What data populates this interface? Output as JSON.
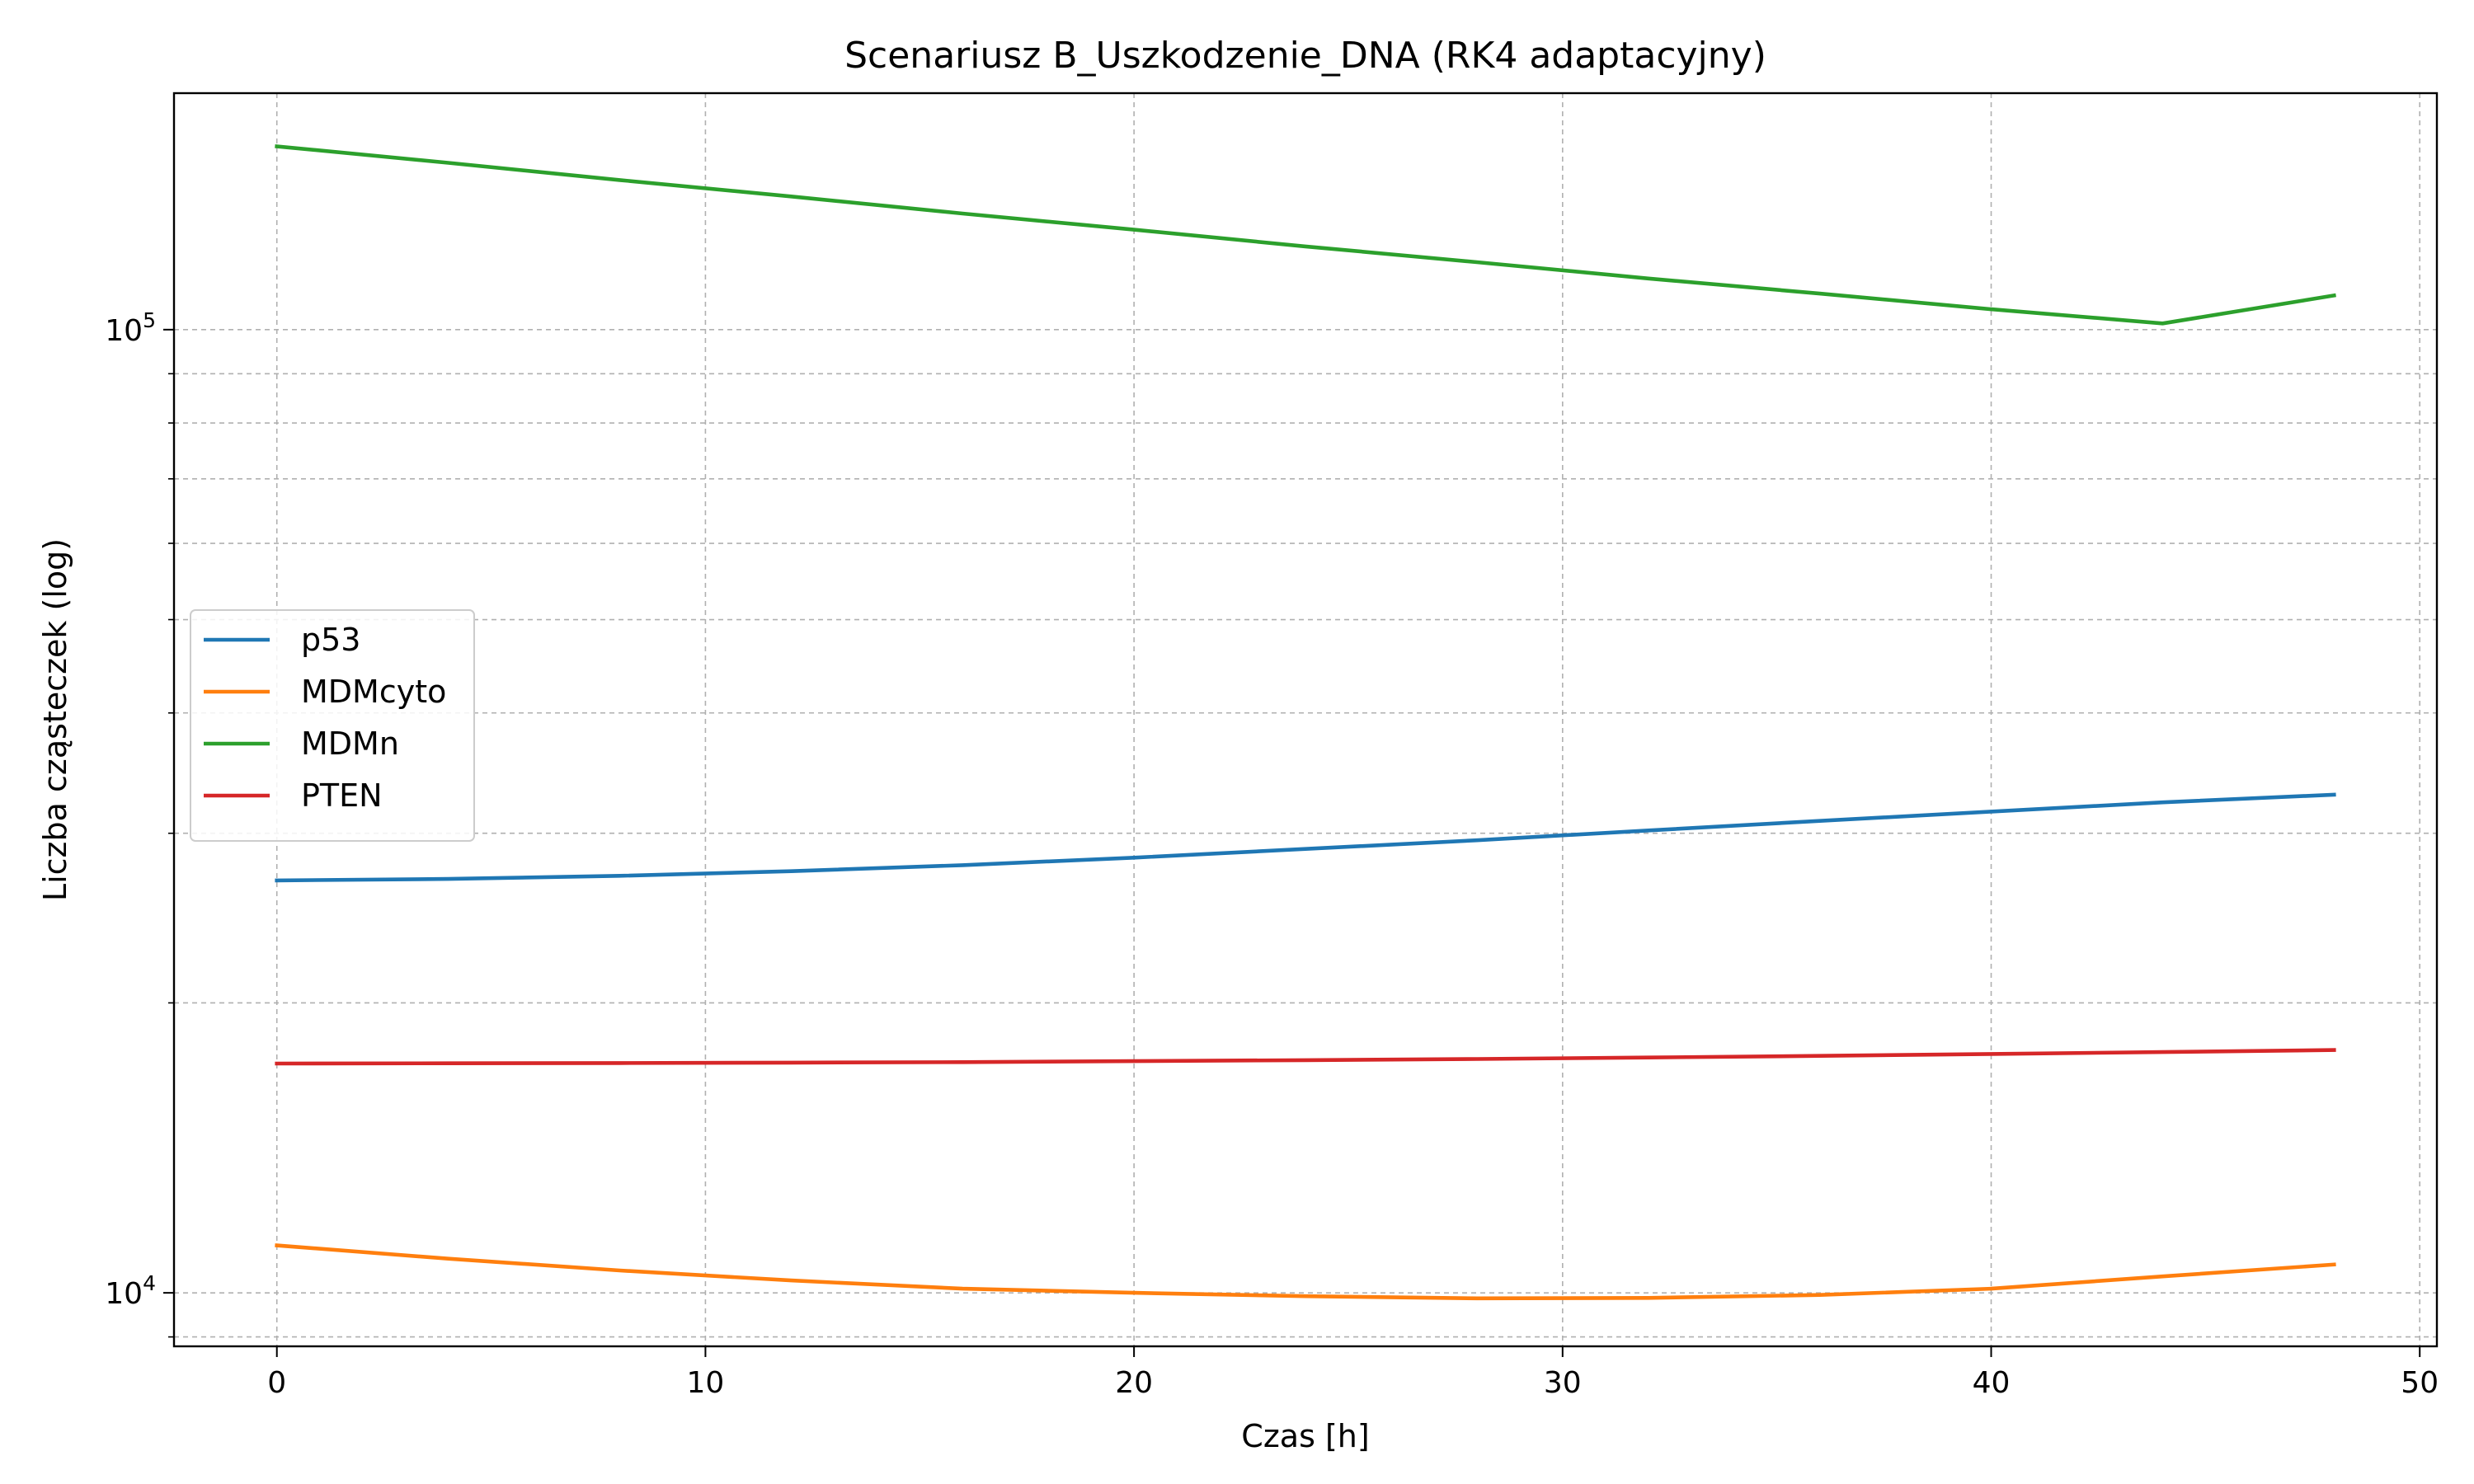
{
  "chart_data": {
    "type": "line",
    "title": "Scenariusz B_Uszkodzenie_DNA (RK4 adaptacyjny)",
    "xlabel": "Czas [h]",
    "ylabel": "Liczba cząsteczek (log)",
    "yscale": "log",
    "xlim": [
      -2.4,
      50.4
    ],
    "ylim": [
      8800,
      176000
    ],
    "grid": true,
    "legend_position": "center-left",
    "x_ticks": [
      0,
      10,
      20,
      30,
      40,
      50
    ],
    "x_tick_labels": [
      "0",
      "10",
      "20",
      "30",
      "40",
      "50"
    ],
    "y_major_ticks": [
      10000,
      100000
    ],
    "y_tick_labels": [
      {
        "base": "10",
        "exp": "4"
      },
      {
        "base": "10",
        "exp": "5"
      }
    ],
    "y_minor_ticks": [
      9000,
      20000,
      30000,
      40000,
      50000,
      60000,
      70000,
      80000,
      90000
    ],
    "x": [
      0,
      4,
      8,
      12,
      16,
      20,
      24,
      28,
      32,
      36,
      40,
      44,
      48
    ],
    "series": [
      {
        "name": "p53",
        "color": "#1f77b4",
        "values": [
          26800,
          26900,
          27100,
          27400,
          27800,
          28300,
          28900,
          29500,
          30200,
          30900,
          31600,
          32300,
          32900
        ]
      },
      {
        "name": "MDMcyto",
        "color": "#ff7f0e",
        "values": [
          11200,
          10850,
          10550,
          10300,
          10100,
          10000,
          9920,
          9870,
          9880,
          9950,
          10100,
          10400,
          10700
        ]
      },
      {
        "name": "MDMn",
        "color": "#2ca02c",
        "values": [
          155000,
          149000,
          143000,
          137500,
          132000,
          127000,
          122000,
          117500,
          113000,
          109000,
          105000,
          101500,
          108500
        ]
      },
      {
        "name": "PTEN",
        "color": "#d62728",
        "values": [
          17300,
          17310,
          17320,
          17340,
          17360,
          17400,
          17440,
          17490,
          17550,
          17620,
          17700,
          17780,
          17870
        ]
      }
    ]
  }
}
